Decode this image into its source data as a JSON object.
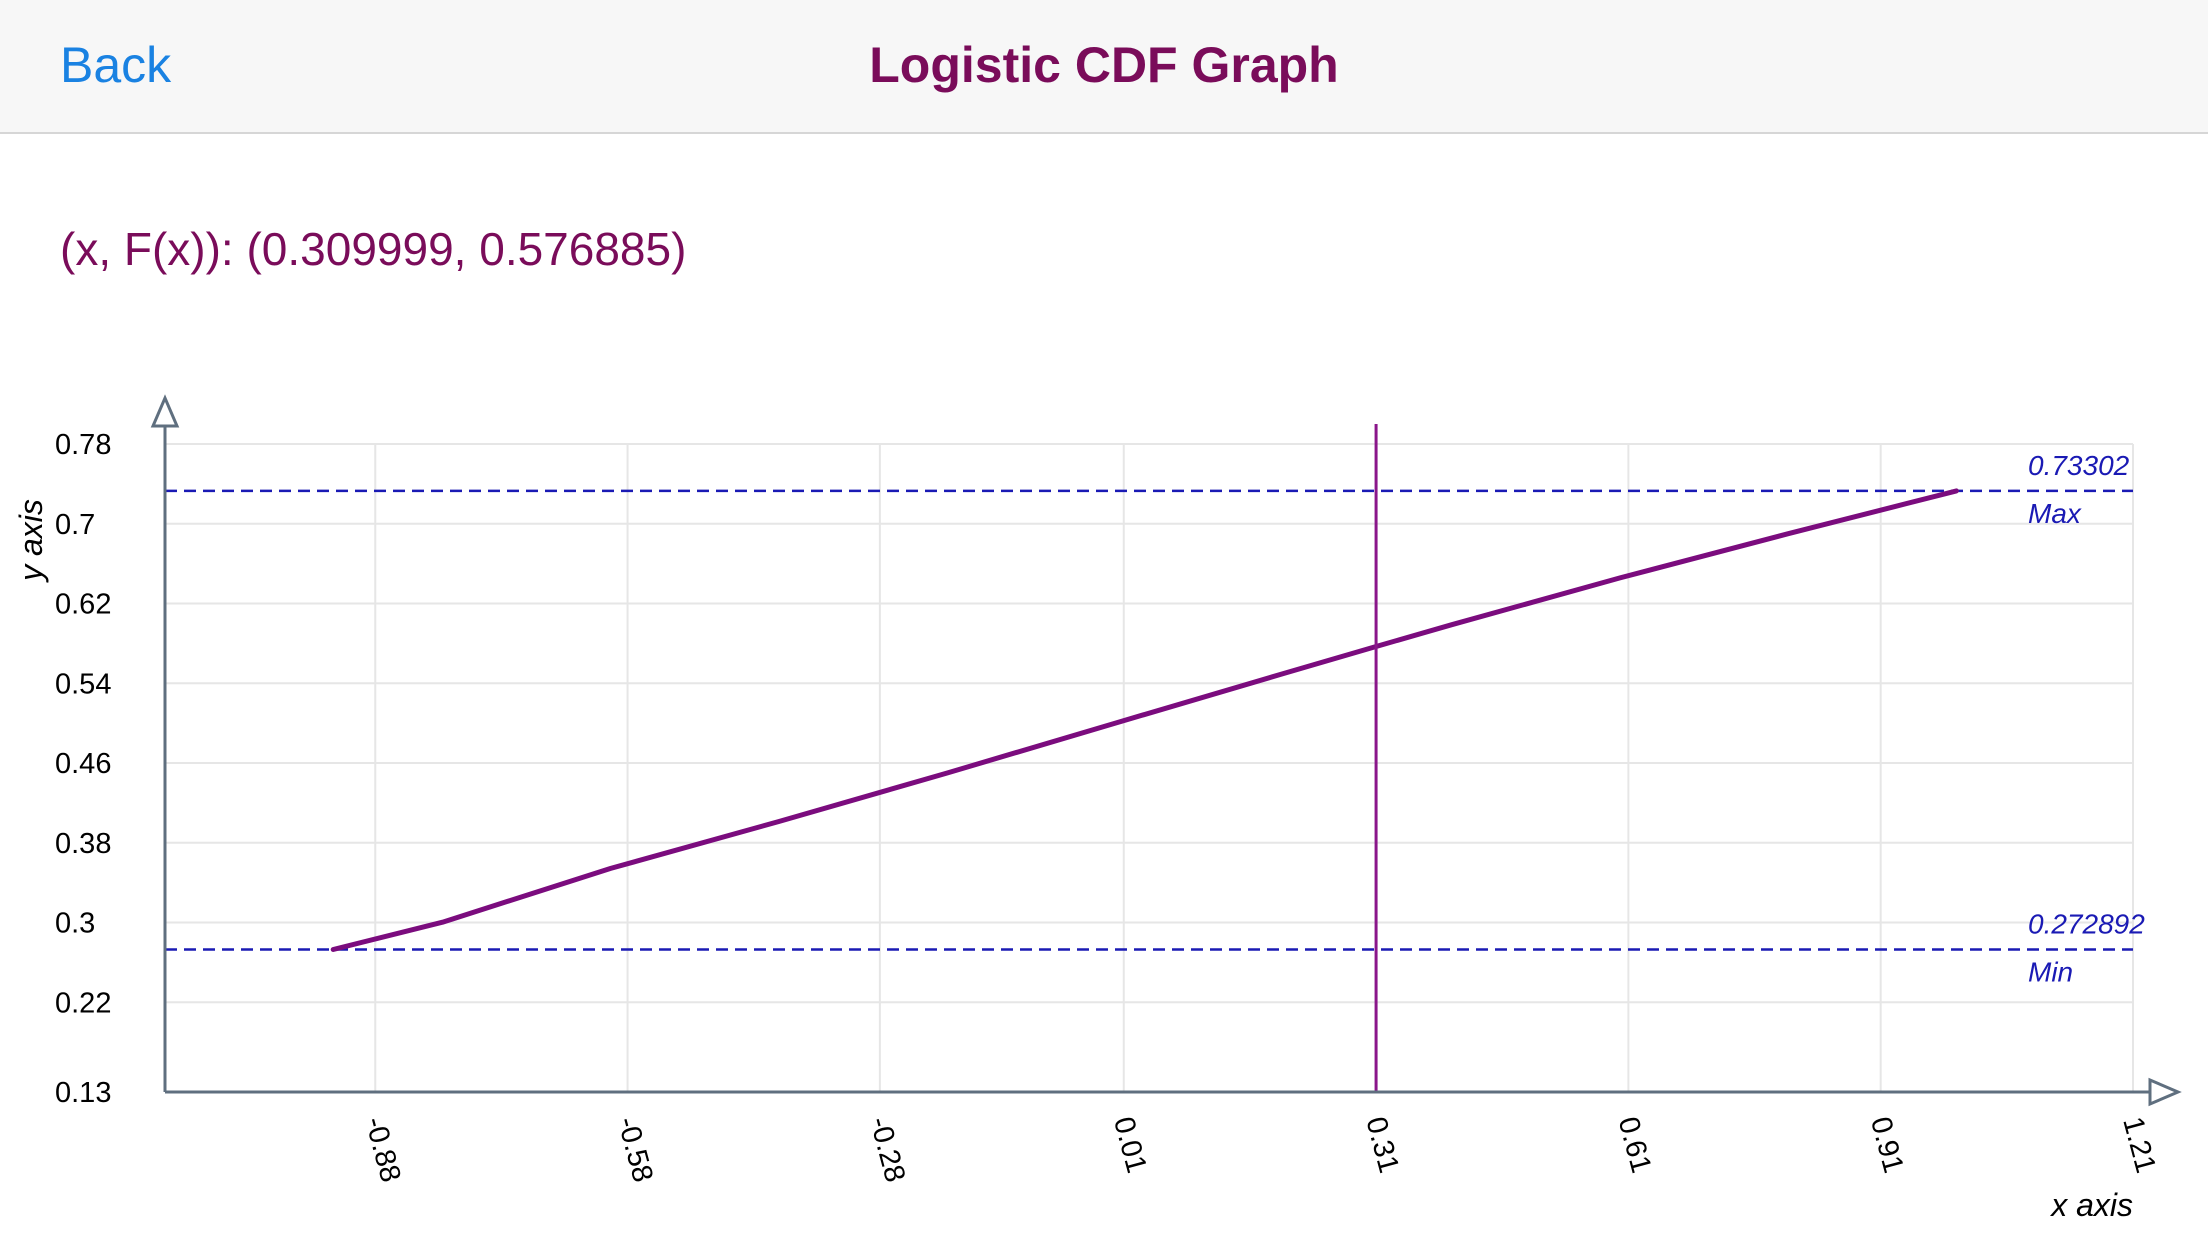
{
  "nav": {
    "back_label": "Back",
    "title": "Logistic CDF Graph"
  },
  "readout": {
    "text": "(x, F(x)): (0.309999, 0.576885)"
  },
  "colors": {
    "title": "#7a0c5a",
    "back": "#1a82e2",
    "curve": "#7b0c7e",
    "cursor": "#8a168a",
    "reference": "#1a1ab4",
    "axis": "#5f6f7f",
    "grid": "#e6e6e6"
  },
  "chart_data": {
    "type": "line",
    "xlabel": "x axis",
    "ylabel": "y axis",
    "xlim": [
      -1.13,
      1.21
    ],
    "ylim": [
      0.13,
      0.78
    ],
    "x_ticks": [
      "-0.88",
      "-0.58",
      "-0.28",
      "0.01",
      "0.31",
      "0.61",
      "0.91",
      "1.21"
    ],
    "x_tick_values": [
      -0.88,
      -0.58,
      -0.28,
      0.01,
      0.31,
      0.61,
      0.91,
      1.21
    ],
    "y_ticks": [
      "0.13",
      "0.22",
      "0.3",
      "0.38",
      "0.46",
      "0.54",
      "0.62",
      "0.7",
      "0.78"
    ],
    "y_tick_values": [
      0.13,
      0.22,
      0.3,
      0.38,
      0.46,
      0.54,
      0.62,
      0.7,
      0.78
    ],
    "grid": true,
    "series": [
      {
        "x": [
          -0.93,
          -0.8,
          -0.6,
          -0.4,
          -0.2,
          0.0,
          0.2,
          0.31,
          0.4,
          0.6,
          0.8,
          1.0
        ],
        "y": [
          0.2729,
          0.3003,
          0.3543,
          0.4013,
          0.45,
          0.5,
          0.5498,
          0.5769,
          0.5987,
          0.6457,
          0.69,
          0.733
        ]
      }
    ],
    "cursor": {
      "x": 0.309999,
      "y": 0.576885
    },
    "reference_lines": [
      {
        "value": 0.73302,
        "value_label": "0.73302",
        "label": "Max"
      },
      {
        "value": 0.272892,
        "value_label": "0.272892",
        "label": "Min"
      }
    ]
  }
}
